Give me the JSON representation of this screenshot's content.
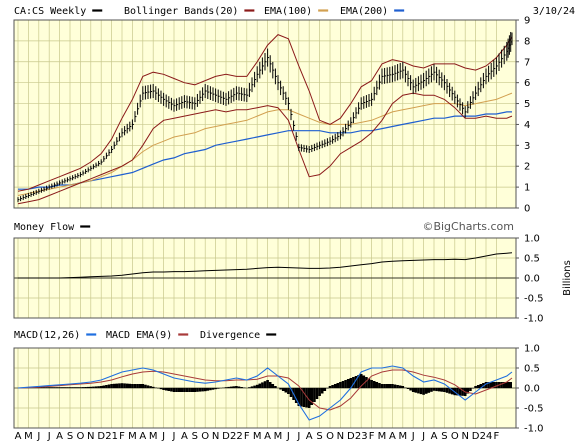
{
  "header": {
    "symbol": "CA:CS Weekly",
    "date": "3/10/24",
    "watermark": "©BigCharts.com"
  },
  "colors": {
    "background": "#ffffd9",
    "grid": "#c8c88c",
    "price": "#000000",
    "bollinger": "#8b1a1a",
    "ema100": "#d2a050",
    "ema200": "#1f5fd0",
    "macd": "#1f6fe0",
    "macd_ema": "#a83a3a",
    "divergence": "#000000",
    "money_flow": "#000000"
  },
  "panels": [
    {
      "id": "price",
      "legend": [
        {
          "label": "CA:CS Weekly",
          "swatch": "#000000"
        },
        {
          "label": "Bollinger Bands(20)",
          "swatch": "#8b1a1a"
        },
        {
          "label": "EMA(100)",
          "swatch": "#d2a050"
        },
        {
          "label": "EMA(200)",
          "swatch": "#1f5fd0"
        }
      ],
      "y_ticks": [
        "9",
        "8",
        "7",
        "6",
        "5",
        "4",
        "3",
        "2",
        "1",
        "0"
      ],
      "ylim": [
        0,
        9
      ]
    },
    {
      "id": "money_flow",
      "legend": [
        {
          "label": "Money Flow",
          "swatch": "#000000"
        }
      ],
      "y_ticks": [
        "1.0",
        "0.5",
        "0.0",
        "-0.5",
        "-1.0"
      ],
      "ylim": [
        -1,
        1
      ],
      "units": "Billions"
    },
    {
      "id": "macd",
      "legend": [
        {
          "label": "MACD(12,26)",
          "swatch": "#1f6fe0"
        },
        {
          "label": "MACD EMA(9)",
          "swatch": "#a83a3a"
        },
        {
          "label": "Divergence",
          "swatch": "#000000"
        }
      ],
      "y_ticks": [
        "1.0",
        "0.5",
        "0.0",
        "-0.5",
        "-1.0"
      ],
      "ylim": [
        -1,
        1
      ]
    }
  ],
  "x_axis": {
    "labels": [
      "A",
      "M",
      "J",
      "J",
      "A",
      "S",
      "O",
      "N",
      "D",
      "21",
      "F",
      "M",
      "A",
      "M",
      "J",
      "J",
      "A",
      "S",
      "O",
      "N",
      "D",
      "22",
      "F",
      "M",
      "A",
      "M",
      "J",
      "J",
      "A",
      "S",
      "O",
      "N",
      "D",
      "23",
      "F",
      "M",
      "A",
      "M",
      "J",
      "J",
      "A",
      "S",
      "O",
      "N",
      "D",
      "24",
      "F"
    ]
  },
  "chart_data": {
    "type": "line",
    "title": "CA:CS Weekly",
    "x_range": [
      "Apr 2020",
      "Mar 2024"
    ],
    "ylim": [
      0,
      9
    ],
    "grid": true,
    "price_series": {
      "name": "CA:CS Weekly",
      "months": [
        0,
        1,
        2,
        3,
        4,
        5,
        6,
        7,
        8,
        9,
        10,
        11,
        12,
        13,
        14,
        15,
        16,
        17,
        18,
        19,
        20,
        21,
        22,
        23,
        24,
        25,
        26,
        27,
        28,
        29,
        30,
        31,
        32,
        33,
        34,
        35,
        36,
        37,
        38,
        39,
        40,
        41,
        42,
        43,
        44,
        45,
        46,
        47,
        47.5
      ],
      "values": [
        0.4,
        0.6,
        0.8,
        1.0,
        1.2,
        1.4,
        1.6,
        1.9,
        2.2,
        2.8,
        3.6,
        4.0,
        5.5,
        5.6,
        5.2,
        4.9,
        5.1,
        5.0,
        5.6,
        5.4,
        5.2,
        5.5,
        5.4,
        6.4,
        7.2,
        6.0,
        5.0,
        2.9,
        2.8,
        3.0,
        3.2,
        3.5,
        4.1,
        5.0,
        5.2,
        6.3,
        6.4,
        6.6,
        5.8,
        6.1,
        6.5,
        6.0,
        5.3,
        4.6,
        5.5,
        6.3,
        6.8,
        7.5,
        8.1
      ]
    },
    "bollinger_upper": [
      0.8,
      0.9,
      1.1,
      1.3,
      1.5,
      1.7,
      1.9,
      2.2,
      2.6,
      3.3,
      4.3,
      5.2,
      6.3,
      6.5,
      6.4,
      6.2,
      6.0,
      5.9,
      6.1,
      6.3,
      6.4,
      6.3,
      6.3,
      7.0,
      7.8,
      8.3,
      8.1,
      6.8,
      5.6,
      4.2,
      4.0,
      4.3,
      5.0,
      5.8,
      6.1,
      6.9,
      7.1,
      7.0,
      6.8,
      6.7,
      6.9,
      6.9,
      6.9,
      6.7,
      6.6,
      6.8,
      7.2,
      7.8,
      8.2
    ],
    "bollinger_lower": [
      0.2,
      0.3,
      0.4,
      0.6,
      0.8,
      1.0,
      1.2,
      1.4,
      1.6,
      1.8,
      2.0,
      2.3,
      3.0,
      3.8,
      4.2,
      4.3,
      4.4,
      4.5,
      4.6,
      4.7,
      4.6,
      4.7,
      4.7,
      4.8,
      4.9,
      4.8,
      4.2,
      2.8,
      1.5,
      1.6,
      2.0,
      2.6,
      2.9,
      3.2,
      3.6,
      4.2,
      5.0,
      5.4,
      5.5,
      5.4,
      5.4,
      5.2,
      4.8,
      4.3,
      4.3,
      4.4,
      4.3,
      4.3,
      4.4
    ],
    "ema100": [
      0.6,
      0.7,
      0.8,
      0.9,
      1.0,
      1.1,
      1.2,
      1.3,
      1.5,
      1.7,
      2.0,
      2.3,
      2.7,
      3.0,
      3.2,
      3.4,
      3.5,
      3.6,
      3.8,
      3.9,
      4.0,
      4.1,
      4.2,
      4.4,
      4.6,
      4.7,
      4.7,
      4.5,
      4.3,
      4.1,
      4.0,
      4.0,
      4.0,
      4.1,
      4.2,
      4.4,
      4.6,
      4.7,
      4.8,
      4.9,
      5.0,
      5.0,
      5.0,
      4.9,
      5.0,
      5.1,
      5.2,
      5.4,
      5.5
    ],
    "ema200": [
      0.9,
      0.9,
      1.0,
      1.0,
      1.1,
      1.1,
      1.2,
      1.3,
      1.4,
      1.5,
      1.6,
      1.7,
      1.9,
      2.1,
      2.3,
      2.4,
      2.6,
      2.7,
      2.8,
      3.0,
      3.1,
      3.2,
      3.3,
      3.4,
      3.5,
      3.6,
      3.7,
      3.7,
      3.7,
      3.7,
      3.6,
      3.6,
      3.6,
      3.7,
      3.7,
      3.8,
      3.9,
      4.0,
      4.1,
      4.2,
      4.3,
      4.3,
      4.4,
      4.4,
      4.4,
      4.5,
      4.5,
      4.6,
      4.6
    ],
    "money_flow": [
      0.0,
      0.0,
      0.0,
      0.0,
      0.0,
      0.01,
      0.02,
      0.03,
      0.04,
      0.05,
      0.07,
      0.1,
      0.13,
      0.15,
      0.15,
      0.16,
      0.16,
      0.17,
      0.18,
      0.19,
      0.2,
      0.21,
      0.22,
      0.24,
      0.26,
      0.27,
      0.26,
      0.25,
      0.24,
      0.24,
      0.25,
      0.27,
      0.3,
      0.33,
      0.36,
      0.4,
      0.42,
      0.43,
      0.44,
      0.45,
      0.46,
      0.46,
      0.47,
      0.46,
      0.5,
      0.55,
      0.6,
      0.62,
      0.63
    ],
    "macd": [
      0.0,
      0.02,
      0.04,
      0.06,
      0.08,
      0.1,
      0.12,
      0.15,
      0.2,
      0.3,
      0.4,
      0.45,
      0.5,
      0.45,
      0.35,
      0.25,
      0.2,
      0.15,
      0.12,
      0.15,
      0.2,
      0.25,
      0.2,
      0.3,
      0.5,
      0.3,
      0.1,
      -0.4,
      -0.8,
      -0.7,
      -0.5,
      -0.3,
      0.0,
      0.4,
      0.5,
      0.5,
      0.55,
      0.5,
      0.3,
      0.15,
      0.2,
      0.1,
      -0.1,
      -0.3,
      -0.1,
      0.1,
      0.2,
      0.3,
      0.4
    ],
    "macd_ema": [
      0.0,
      0.01,
      0.02,
      0.04,
      0.06,
      0.08,
      0.1,
      0.12,
      0.15,
      0.2,
      0.28,
      0.35,
      0.4,
      0.42,
      0.4,
      0.35,
      0.3,
      0.25,
      0.2,
      0.18,
      0.18,
      0.2,
      0.2,
      0.22,
      0.3,
      0.3,
      0.25,
      0.05,
      -0.3,
      -0.5,
      -0.55,
      -0.45,
      -0.25,
      0.05,
      0.3,
      0.4,
      0.45,
      0.45,
      0.4,
      0.32,
      0.27,
      0.2,
      0.08,
      -0.1,
      -0.15,
      -0.05,
      0.05,
      0.15,
      0.25
    ]
  }
}
